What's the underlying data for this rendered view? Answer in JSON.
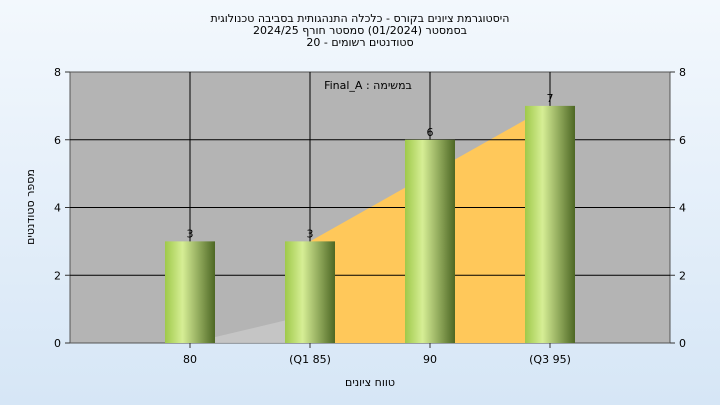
{
  "chart_data": {
    "type": "bar",
    "title_lines": [
      "היסטוגרמת ציונים בקורס - כלכלה התנהגותית בסביבה טכנולוגית",
      "בסמסטר  (01/2024)  סמסטר חורף 2024/25",
      "סטודנטים רשומים - 20"
    ],
    "annotation": "במשימה : Final_A",
    "xlabel": "טווח ציונים",
    "ylabel": "מספר סטודנטים",
    "categories": [
      "80",
      "(Q1 85)",
      "90",
      "(Q3 95)"
    ],
    "values": [
      3,
      3,
      6,
      7
    ],
    "data_labels": [
      "3",
      "3",
      "6",
      "7"
    ],
    "ylim": [
      0,
      8
    ],
    "yticks": [
      "0",
      "2",
      "4",
      "6",
      "8"
    ],
    "grid": true,
    "colors": {
      "plot_bg": "#b4b4b4",
      "bar_light": "#c6e27a",
      "bar_dark": "#55702a",
      "area_fill": "#ffc85a",
      "area_shadow": "#c8c8c8"
    }
  }
}
